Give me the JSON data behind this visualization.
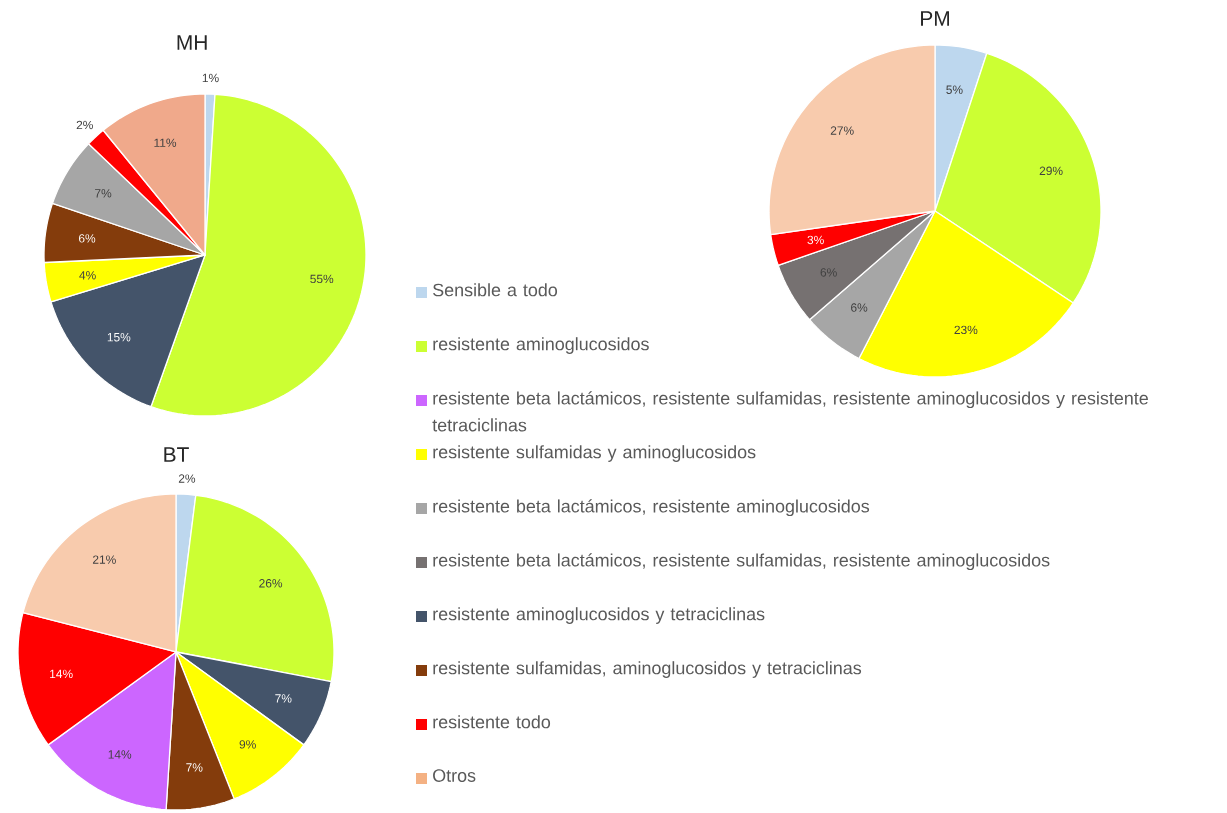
{
  "chart_data": [
    {
      "type": "pie",
      "title": "MH",
      "categories": [
        null,
        null,
        null,
        null,
        null,
        null,
        null,
        null
      ],
      "values": [
        1,
        55,
        15,
        4,
        6,
        7,
        2,
        11
      ],
      "value_labels": [
        "1%",
        "55%",
        "15%",
        "4%",
        "6%",
        "7%",
        "2%",
        "11%"
      ],
      "colors": [
        "#bdd7ee",
        "#ccff33",
        "#44546a",
        "#ffff00",
        "#843c0c",
        "#a6a6a6",
        "#ff0000",
        "#f0a98b"
      ]
    },
    {
      "type": "pie",
      "title": "PM",
      "categories": [
        null,
        null,
        null,
        null,
        null,
        null,
        null
      ],
      "values": [
        5,
        29,
        23,
        6,
        6,
        3,
        27
      ],
      "value_labels": [
        "5%",
        "29%",
        "23%",
        "6%",
        "6%",
        "3%",
        "27%"
      ],
      "colors": [
        "#bdd7ee",
        "#ccff33",
        "#ffff00",
        "#a6a6a6",
        "#767171",
        "#ff0000",
        "#f8cbad"
      ]
    },
    {
      "type": "pie",
      "title": "BT",
      "categories": [
        null,
        null,
        null,
        null,
        null,
        null,
        null,
        null
      ],
      "values": [
        2,
        26,
        7,
        9,
        7,
        14,
        14,
        21
      ],
      "value_labels": [
        "2%",
        "26%",
        "7%",
        "9%",
        "7%",
        "14%",
        "14%",
        "21%"
      ],
      "colors": [
        "#bdd7ee",
        "#ccff33",
        "#44546a",
        "#ffff00",
        "#843c0c",
        "#cc66ff",
        "#ff0000",
        "#f8cbad"
      ]
    },
    {
      "type": "other",
      "categories": [
        "Sensible a todo",
        "resistente aminoglucosidos",
        "resistente beta lactámicos, resistente sulfamidas, resistente aminoglucosidos y resistente tetraciclinas",
        "resistente sulfamidas y aminoglucosidos",
        "resistente beta lactámicos, resistente aminoglucosidos",
        "resistente beta lactámicos, resistente sulfamidas, resistente aminoglucosidos",
        "resistente aminoglucosidos y tetraciclinas",
        "resistente sulfamidas, aminoglucosidos y tetraciclinas",
        "resistente todo",
        "Otros"
      ],
      "colors": [
        "#bdd7ee",
        "#ccff33",
        "#cc66ff",
        "#ffff00",
        "#a6a6a6",
        "#767171",
        "#44546a",
        "#843c0c",
        "#ff0000",
        "#f4b183"
      ]
    }
  ]
}
